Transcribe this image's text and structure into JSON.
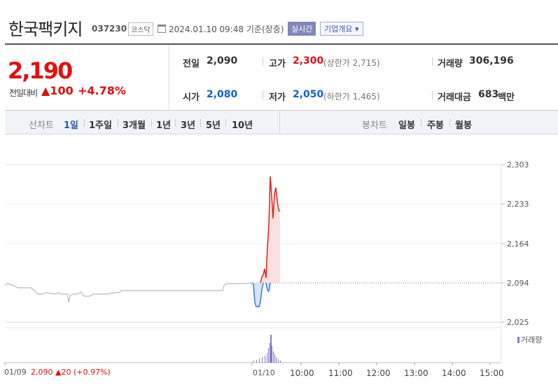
{
  "stock": {
    "name": "한국팩키지",
    "code": "037230",
    "market": "코스닥",
    "datetime": "2024.01.10 09:48  기준(장중)",
    "realtime_label": "실시간",
    "company_info_label": "기업개요 ▾"
  },
  "price": {
    "current": "2,190",
    "change_label": "전일대비",
    "change_value": "▲100",
    "change_rate": "+4.78%"
  },
  "stats": {
    "prev_close_label": "전일",
    "prev_close": "2,090",
    "high_label": "고가",
    "high": "2,300",
    "upper_limit": "(상한가 2,715)",
    "volume_label": "거래량",
    "volume": "306,196",
    "open_label": "시가",
    "open": "2,080",
    "low_label": "저가",
    "low": "2,050",
    "lower_limit": "(하한가 1,465)",
    "amount_label": "거래대금",
    "amount": "683",
    "amount_unit": "백만"
  },
  "toolbar": {
    "line_chart_label": "선차트",
    "line_periods": [
      "1일",
      "1주일",
      "3개월",
      "1년",
      "3년",
      "5년",
      "10년"
    ],
    "active_period": "1일",
    "candle_chart_label": "봉차트",
    "candle_periods": [
      "일봉",
      "주봉",
      "월봉"
    ]
  },
  "chart_data": {
    "type": "line",
    "y_ticks": [
      "2,303",
      "2,233",
      "2,164",
      "2,094",
      "2,025"
    ],
    "x_ticks": [
      "01/10",
      "10:00",
      "11:00",
      "12:00",
      "13:00",
      "14:00",
      "15:00"
    ],
    "prev_date": "01/09",
    "prev_summary": "2,090 ▲20 (+0.97%)",
    "volume_legend": "거래량",
    "reference_price": 2090,
    "colors": {
      "up": "#e02020",
      "down": "#3a78d0",
      "previous": "#b9b9b9",
      "volume": "#8a7bc2"
    }
  }
}
